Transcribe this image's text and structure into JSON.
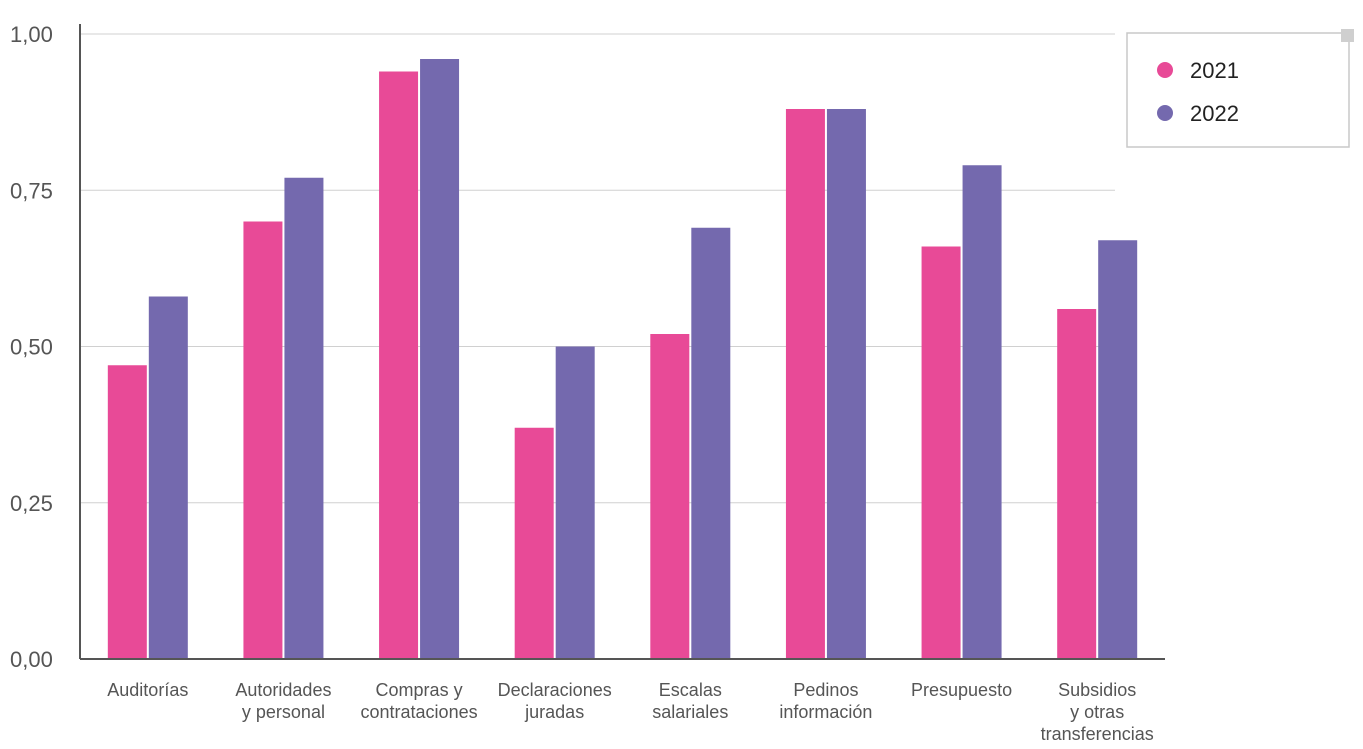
{
  "chart_data": {
    "type": "bar",
    "categories": [
      [
        "Auditorías"
      ],
      [
        "Autoridades",
        "y personal"
      ],
      [
        "Compras y",
        "contrataciones"
      ],
      [
        "Declaraciones",
        "juradas"
      ],
      [
        "Escalas",
        "salariales"
      ],
      [
        "Pedinos",
        "información"
      ],
      [
        "Presupuesto"
      ],
      [
        "Subsidios",
        "y otras",
        "transferencias"
      ]
    ],
    "series": [
      {
        "name": "2021",
        "color": "#e84a97",
        "values": [
          0.47,
          0.7,
          0.94,
          0.37,
          0.52,
          0.88,
          0.66,
          0.56
        ]
      },
      {
        "name": "2022",
        "color": "#7469ae",
        "values": [
          0.58,
          0.77,
          0.96,
          0.5,
          0.69,
          0.88,
          0.79,
          0.67
        ]
      }
    ],
    "ylim": [
      0,
      1
    ],
    "yticks": [
      "0,00",
      "0,25",
      "0,50",
      "0,75",
      "1,00"
    ],
    "ytick_values": [
      0,
      0.25,
      0.5,
      0.75,
      1.0
    ],
    "grid": true,
    "legend_position": "top-right",
    "axis_color": "#555555",
    "grid_color": "#d0d0d0"
  }
}
